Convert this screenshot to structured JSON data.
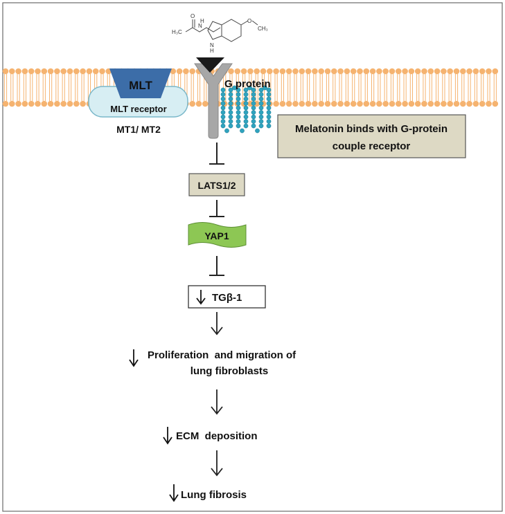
{
  "molecule": {
    "left_group": "H₃C",
    "nh": "H",
    "n": "N",
    "o_carbonyl": "O",
    "o_methoxy": "O",
    "methyl": "CH₃",
    "ring_nh": "H",
    "ring_n": "N"
  },
  "receptor": {
    "ligand_label": "MLT",
    "receptor_label": "MLT receptor",
    "subtype_label": "MT1/ MT2",
    "gprotein_label": "G protein"
  },
  "note_box": {
    "line1": "Melatonin binds with G-protein",
    "line2": "couple receptor"
  },
  "pathway": {
    "lats": "LATS1/2",
    "yap": "YAP1",
    "tgf": "TGβ-1",
    "prolif_line1": "Proliferation  and migration of",
    "prolif_line2": "lung fibroblasts",
    "ecm": "ECM  deposition",
    "fibrosis": "Lung fibrosis"
  },
  "colors": {
    "lipid_head": "#F5B370",
    "lipid_tail": "#F5B370",
    "mlt_fill": "#3C6DA8",
    "receptor_fill": "#D7EEF3",
    "receptor_stroke": "#79B7C9",
    "gprotein_bead": "#2FA3BE",
    "y_receptor": "#A7A7A7",
    "ligand_triangle": "#1A1A1A",
    "tan_box": "#DDD9C4",
    "yap_fill": "#8DC754"
  }
}
